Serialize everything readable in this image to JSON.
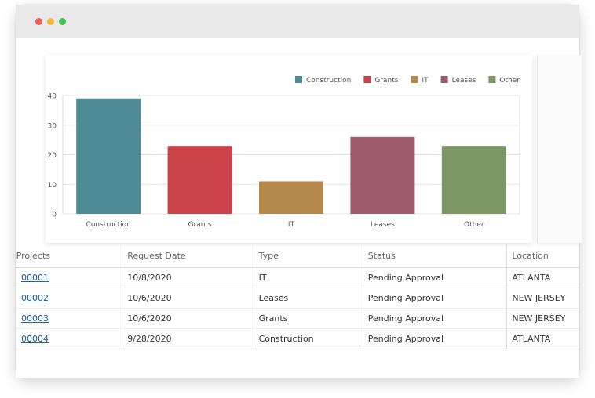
{
  "chart_data": {
    "type": "bar",
    "categories": [
      "Construction",
      "Grants",
      "IT",
      "Leases",
      "Other"
    ],
    "series": [
      {
        "name": "Construction",
        "value": 39,
        "color": "#4e8b95"
      },
      {
        "name": "Grants",
        "value": 23,
        "color": "#cb4348"
      },
      {
        "name": "IT",
        "value": 11,
        "color": "#b5884e"
      },
      {
        "name": "Leases",
        "value": 26,
        "color": "#9e5d6c"
      },
      {
        "name": "Other",
        "value": 23,
        "color": "#7e9564"
      }
    ],
    "y_ticks": [
      "0",
      "10",
      "20",
      "30",
      "40"
    ],
    "ylim": [
      0,
      40
    ],
    "grid": true,
    "legend_position": "top-right"
  },
  "table": {
    "headers": {
      "project": "Projects",
      "request_date": "Request Date",
      "type": "Type",
      "status": "Status",
      "location": "Location"
    },
    "rows": [
      {
        "project": "00001",
        "request_date": "10/8/2020",
        "type": "IT",
        "status": "Pending Approval",
        "location": "ATLANTA"
      },
      {
        "project": "00002",
        "request_date": "10/6/2020",
        "type": "Leases",
        "status": "Pending Approval",
        "location": "NEW JERSEY"
      },
      {
        "project": "00003",
        "request_date": "10/6/2020",
        "type": "Grants",
        "status": "Pending Approval",
        "location": "NEW JERSEY"
      },
      {
        "project": "00004",
        "request_date": "9/28/2020",
        "type": "Construction",
        "status": "Pending Approval",
        "location": "ATLANTA"
      }
    ]
  }
}
